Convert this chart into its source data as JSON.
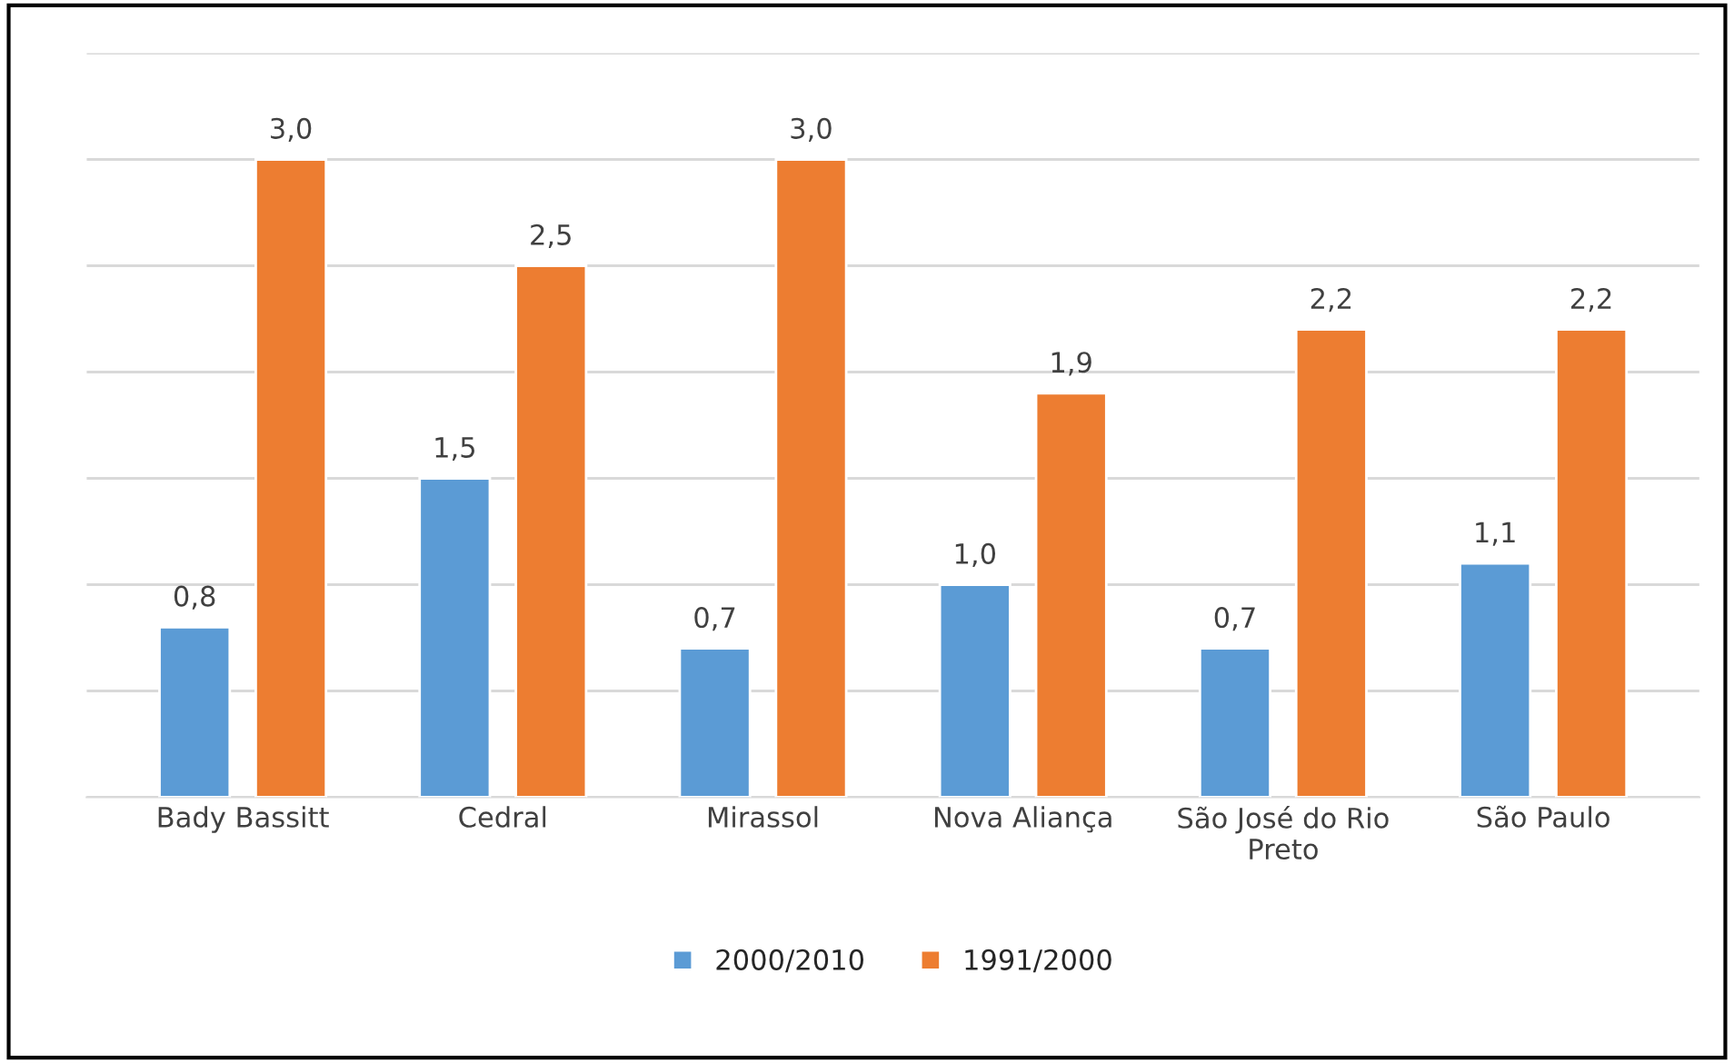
{
  "chart_data": {
    "type": "bar",
    "categories": [
      "Bady Bassitt",
      "Cedral",
      "Mirassol",
      "Nova Aliança",
      "São José do Rio\nPreto",
      "São Paulo"
    ],
    "series": [
      {
        "name": "2000/2010",
        "color": "#5b9bd5",
        "values": [
          0.8,
          1.5,
          0.7,
          1.0,
          0.7,
          1.1
        ],
        "value_labels": [
          "0,8",
          "1,5",
          "0,7",
          "1,0",
          "0,7",
          "1,1"
        ]
      },
      {
        "name": "1991/2000",
        "color": "#ed7d31",
        "values": [
          3.0,
          2.5,
          3.0,
          1.9,
          2.2,
          2.2
        ],
        "value_labels": [
          "3,0",
          "2,5",
          "3,0",
          "1,9",
          "2,2",
          "2,2"
        ]
      }
    ],
    "ylim": [
      0,
      3.5
    ],
    "yticks": [
      {
        "value": 0,
        "label": null
      },
      {
        "value": 0.5,
        "label": null
      },
      {
        "value": 1,
        "label": null
      },
      {
        "value": 1.5,
        "label": null
      },
      {
        "value": 2,
        "label": null
      },
      {
        "value": 2.5,
        "label": null
      },
      {
        "value": 3,
        "label": null
      },
      {
        "value": 3.5,
        "label": null
      }
    ],
    "grid": "y",
    "legend": "bottom",
    "tick_labels": "x"
  }
}
